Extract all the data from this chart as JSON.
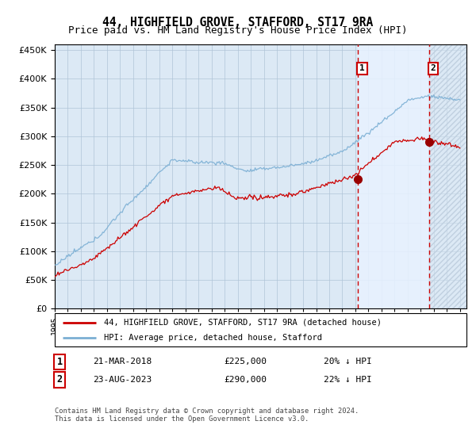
{
  "title": "44, HIGHFIELD GROVE, STAFFORD, ST17 9RA",
  "subtitle": "Price paid vs. HM Land Registry's House Price Index (HPI)",
  "title_fontsize": 10.5,
  "subtitle_fontsize": 9,
  "legend_line1": "44, HIGHFIELD GROVE, STAFFORD, ST17 9RA (detached house)",
  "legend_line2": "HPI: Average price, detached house, Stafford",
  "transaction1_date": "21-MAR-2018",
  "transaction1_price": 225000,
  "transaction1_pct": "20%",
  "transaction2_date": "23-AUG-2023",
  "transaction2_price": 290000,
  "transaction2_pct": "22%",
  "footer": "Contains HM Land Registry data © Crown copyright and database right 2024.\nThis data is licensed under the Open Government Licence v3.0.",
  "hpi_color": "#7bafd4",
  "price_color": "#cc0000",
  "marker_color": "#990000",
  "bg_color": "#dce9f5",
  "grid_color": "#b0c4d8",
  "ylim": [
    0,
    460000
  ],
  "yticks": [
    0,
    50000,
    100000,
    150000,
    200000,
    250000,
    300000,
    350000,
    400000,
    450000
  ],
  "transaction1_x": 2018.21,
  "transaction2_x": 2023.64,
  "xlim_start": 1995.0,
  "xlim_end": 2026.5
}
